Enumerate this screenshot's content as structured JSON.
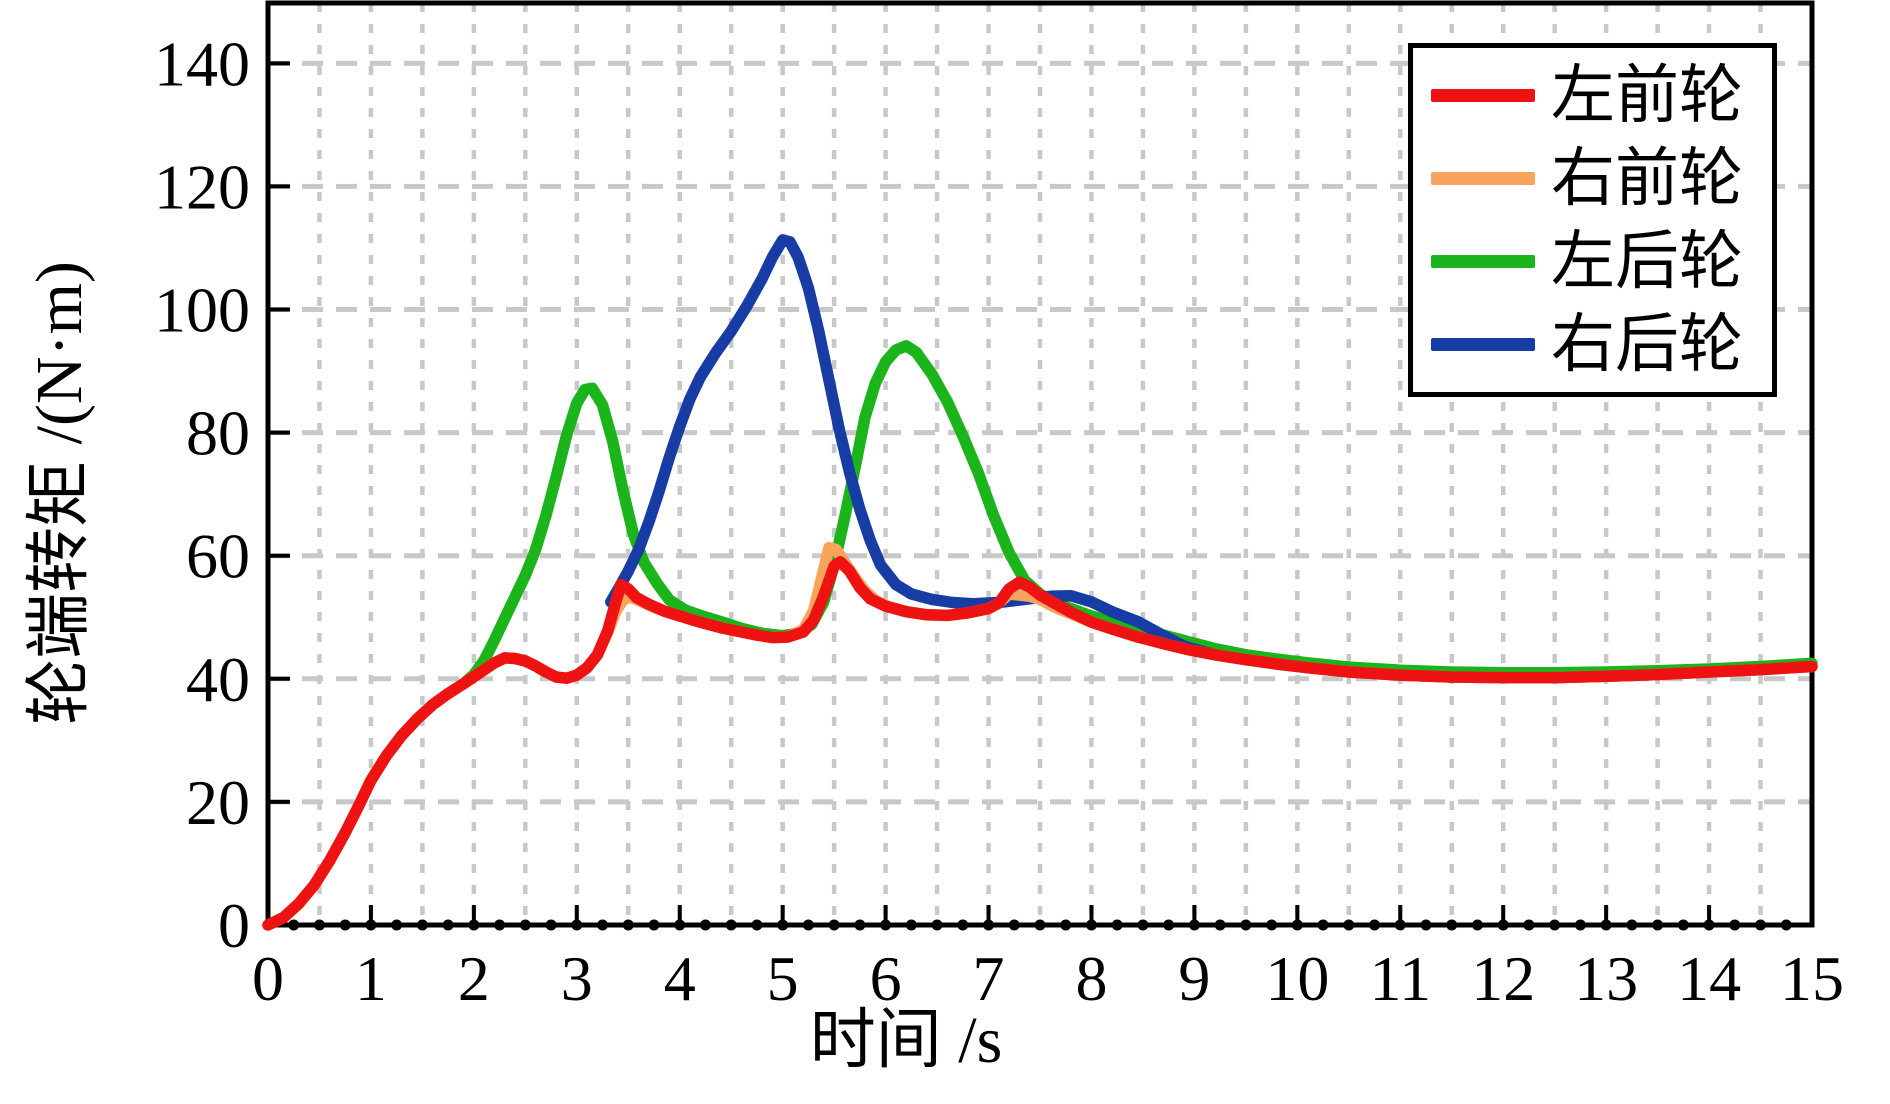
{
  "figure": {
    "background": "#ffffff",
    "border_color": "#000000"
  },
  "chart_data": {
    "type": "line",
    "title": "",
    "xlabel": "时间 /s",
    "ylabel": "轮端转矩 /(N·m)",
    "xlim": [
      0,
      15
    ],
    "ylim": [
      0,
      149.8
    ],
    "xticks": [
      0,
      1,
      2,
      3,
      4,
      5,
      6,
      7,
      8,
      9,
      10,
      11,
      12,
      13,
      14,
      15
    ],
    "yticks": [
      0,
      20,
      40,
      60,
      80,
      100,
      120,
      140
    ],
    "grid": {
      "on": true,
      "color": "#c8c8c8",
      "x_step": 0.5,
      "y_step": 20
    },
    "axis_dot_markers": {
      "step": 0.25,
      "color": "#000000"
    },
    "legend": {
      "position": "top-right",
      "border_color": "#000000",
      "background": "#ffffff"
    },
    "draw_order": [
      2,
      3,
      1,
      0
    ],
    "series": [
      {
        "name": "左前轮",
        "color": "#ee1212",
        "points": [
          [
            0,
            0
          ],
          [
            0.15,
            1.2
          ],
          [
            0.3,
            3.5
          ],
          [
            0.45,
            6.5
          ],
          [
            0.6,
            10.5
          ],
          [
            0.75,
            15
          ],
          [
            0.9,
            20
          ],
          [
            1.0,
            23.5
          ],
          [
            1.15,
            27.5
          ],
          [
            1.3,
            30.8
          ],
          [
            1.45,
            33.5
          ],
          [
            1.6,
            35.8
          ],
          [
            1.75,
            37.6
          ],
          [
            1.9,
            39.2
          ],
          [
            2.05,
            40.9
          ],
          [
            2.2,
            42.6
          ],
          [
            2.3,
            43.4
          ],
          [
            2.4,
            43.3
          ],
          [
            2.5,
            42.9
          ],
          [
            2.6,
            42.1
          ],
          [
            2.7,
            41.1
          ],
          [
            2.8,
            40.3
          ],
          [
            2.9,
            40.1
          ],
          [
            3.0,
            40.6
          ],
          [
            3.1,
            41.8
          ],
          [
            3.2,
            43.9
          ],
          [
            3.3,
            47.8
          ],
          [
            3.37,
            52
          ],
          [
            3.43,
            55.3
          ],
          [
            3.5,
            54.6
          ],
          [
            3.58,
            53.2
          ],
          [
            3.7,
            52.1
          ],
          [
            3.85,
            51
          ],
          [
            4.0,
            50.2
          ],
          [
            4.2,
            49.2
          ],
          [
            4.4,
            48.3
          ],
          [
            4.6,
            47.6
          ],
          [
            4.75,
            47.1
          ],
          [
            4.9,
            46.7
          ],
          [
            5.05,
            46.8
          ],
          [
            5.2,
            47.6
          ],
          [
            5.3,
            49.5
          ],
          [
            5.4,
            53.5
          ],
          [
            5.5,
            58.3
          ],
          [
            5.56,
            59
          ],
          [
            5.65,
            57.5
          ],
          [
            5.75,
            54.8
          ],
          [
            5.85,
            53
          ],
          [
            6.0,
            51.8
          ],
          [
            6.2,
            50.9
          ],
          [
            6.4,
            50.4
          ],
          [
            6.6,
            50.3
          ],
          [
            6.8,
            50.7
          ],
          [
            7.0,
            51.4
          ],
          [
            7.1,
            52.3
          ],
          [
            7.2,
            54.6
          ],
          [
            7.3,
            55.7
          ],
          [
            7.4,
            54.9
          ],
          [
            7.5,
            53.6
          ],
          [
            7.65,
            52.2
          ],
          [
            7.8,
            50.8
          ],
          [
            8.0,
            49.2
          ],
          [
            8.2,
            48.1
          ],
          [
            8.45,
            46.8
          ],
          [
            8.7,
            45.7
          ],
          [
            8.95,
            44.7
          ],
          [
            9.2,
            43.9
          ],
          [
            9.5,
            43.1
          ],
          [
            9.8,
            42.4
          ],
          [
            10.1,
            41.8
          ],
          [
            10.5,
            41.1
          ],
          [
            11.0,
            40.6
          ],
          [
            11.5,
            40.3
          ],
          [
            12.0,
            40.2
          ],
          [
            12.5,
            40.2
          ],
          [
            13.0,
            40.4
          ],
          [
            13.5,
            40.7
          ],
          [
            14.0,
            41.1
          ],
          [
            14.5,
            41.5
          ],
          [
            15.0,
            42.0
          ]
        ]
      },
      {
        "name": "右前轮",
        "color": "#f9a45c",
        "points": [
          [
            0,
            0
          ],
          [
            0.15,
            1.2
          ],
          [
            0.3,
            3.5
          ],
          [
            0.45,
            6.5
          ],
          [
            0.6,
            10.5
          ],
          [
            0.75,
            15
          ],
          [
            0.9,
            20
          ],
          [
            1.0,
            23.5
          ],
          [
            1.15,
            27.5
          ],
          [
            1.3,
            30.8
          ],
          [
            1.45,
            33.5
          ],
          [
            1.6,
            35.8
          ],
          [
            1.75,
            37.6
          ],
          [
            1.9,
            39.2
          ],
          [
            2.05,
            40.9
          ],
          [
            2.2,
            42.6
          ],
          [
            2.3,
            43.4
          ],
          [
            2.4,
            43.3
          ],
          [
            2.5,
            42.9
          ],
          [
            2.6,
            42.1
          ],
          [
            2.7,
            41.1
          ],
          [
            2.8,
            40.3
          ],
          [
            2.9,
            40.1
          ],
          [
            3.0,
            40.6
          ],
          [
            3.1,
            41.8
          ],
          [
            3.2,
            43.9
          ],
          [
            3.3,
            47.5
          ],
          [
            3.38,
            51
          ],
          [
            3.45,
            52.8
          ],
          [
            3.52,
            53.3
          ],
          [
            3.62,
            52.6
          ],
          [
            3.75,
            51.6
          ],
          [
            3.9,
            50.7
          ],
          [
            4.0,
            50.2
          ],
          [
            4.2,
            49.2
          ],
          [
            4.4,
            48.3
          ],
          [
            4.6,
            47.6
          ],
          [
            4.75,
            47.1
          ],
          [
            4.9,
            46.7
          ],
          [
            5.05,
            46.8
          ],
          [
            5.2,
            48
          ],
          [
            5.3,
            51
          ],
          [
            5.38,
            56.5
          ],
          [
            5.45,
            61.3
          ],
          [
            5.52,
            61.0
          ],
          [
            5.6,
            59
          ],
          [
            5.7,
            56.5
          ],
          [
            5.8,
            54.3
          ],
          [
            5.9,
            52.8
          ],
          [
            6.0,
            51.9
          ],
          [
            6.2,
            50.9
          ],
          [
            6.4,
            50.4
          ],
          [
            6.6,
            50.3
          ],
          [
            6.8,
            50.7
          ],
          [
            7.0,
            51.4
          ],
          [
            7.1,
            52.3
          ],
          [
            7.2,
            53.8
          ],
          [
            7.3,
            53.6
          ],
          [
            7.4,
            53.4
          ],
          [
            7.5,
            52.9
          ],
          [
            7.6,
            52.0
          ],
          [
            7.7,
            51.2
          ],
          [
            7.8,
            50.6
          ],
          [
            8.0,
            49.2
          ],
          [
            8.2,
            48.1
          ],
          [
            8.45,
            46.8
          ],
          [
            8.7,
            45.7
          ],
          [
            8.95,
            44.7
          ],
          [
            9.2,
            43.9
          ],
          [
            9.5,
            43.1
          ],
          [
            9.8,
            42.4
          ],
          [
            10.1,
            41.8
          ],
          [
            10.5,
            41.1
          ],
          [
            11.0,
            40.6
          ],
          [
            11.5,
            40.3
          ],
          [
            12.0,
            40.2
          ],
          [
            12.5,
            40.2
          ],
          [
            13.0,
            40.4
          ],
          [
            13.5,
            40.7
          ],
          [
            14.0,
            41.1
          ],
          [
            14.5,
            41.5
          ],
          [
            15.0,
            42.0
          ]
        ]
      },
      {
        "name": "左后轮",
        "color": "#1bb41b",
        "points": [
          [
            1.9,
            39.2
          ],
          [
            2.0,
            40.7
          ],
          [
            2.1,
            43
          ],
          [
            2.2,
            46.3
          ],
          [
            2.3,
            49.8
          ],
          [
            2.4,
            53.3
          ],
          [
            2.5,
            56.8
          ],
          [
            2.6,
            61
          ],
          [
            2.7,
            66.5
          ],
          [
            2.8,
            72.8
          ],
          [
            2.9,
            79.5
          ],
          [
            3.0,
            84.8
          ],
          [
            3.08,
            87.0
          ],
          [
            3.15,
            87.2
          ],
          [
            3.25,
            84.5
          ],
          [
            3.35,
            78.5
          ],
          [
            3.45,
            70.5
          ],
          [
            3.55,
            63.5
          ],
          [
            3.65,
            59
          ],
          [
            3.78,
            55.5
          ],
          [
            3.9,
            52.8
          ],
          [
            4.05,
            51.2
          ],
          [
            4.2,
            50.3
          ],
          [
            4.4,
            49.3
          ],
          [
            4.6,
            48.2
          ],
          [
            4.8,
            47.4
          ],
          [
            5.0,
            47.0
          ],
          [
            5.15,
            47.4
          ],
          [
            5.28,
            48.8
          ],
          [
            5.4,
            52.5
          ],
          [
            5.5,
            58.5
          ],
          [
            5.6,
            66
          ],
          [
            5.7,
            74
          ],
          [
            5.8,
            82.5
          ],
          [
            5.9,
            88
          ],
          [
            6.0,
            91.5
          ],
          [
            6.1,
            93.4
          ],
          [
            6.2,
            94.1
          ],
          [
            6.3,
            93.0
          ],
          [
            6.45,
            89.5
          ],
          [
            6.6,
            85
          ],
          [
            6.75,
            79.5
          ],
          [
            6.9,
            73.5
          ],
          [
            7.05,
            66.5
          ],
          [
            7.2,
            60.5
          ],
          [
            7.35,
            56
          ],
          [
            7.5,
            53.8
          ],
          [
            7.65,
            52.3
          ],
          [
            7.8,
            51.4
          ],
          [
            8.0,
            50.2
          ],
          [
            8.2,
            49.3
          ],
          [
            8.45,
            48.2
          ],
          [
            8.7,
            47.1
          ],
          [
            8.95,
            46.0
          ],
          [
            9.2,
            44.9
          ],
          [
            9.5,
            43.9
          ],
          [
            9.8,
            43.2
          ],
          [
            10.1,
            42.6
          ],
          [
            10.5,
            41.9
          ],
          [
            11.0,
            41.4
          ],
          [
            11.5,
            41.1
          ],
          [
            12.0,
            41.0
          ],
          [
            12.5,
            41.0
          ],
          [
            13.0,
            41.1
          ],
          [
            13.5,
            41.3
          ],
          [
            14.0,
            41.6
          ],
          [
            14.5,
            42.0
          ],
          [
            15.0,
            42.5
          ]
        ]
      },
      {
        "name": "右后轮",
        "color": "#173da4",
        "points": [
          [
            3.33,
            52.5
          ],
          [
            3.4,
            54.5
          ],
          [
            3.5,
            57.5
          ],
          [
            3.6,
            61
          ],
          [
            3.7,
            65.5
          ],
          [
            3.8,
            70.5
          ],
          [
            3.9,
            76
          ],
          [
            4.0,
            81
          ],
          [
            4.1,
            85.5
          ],
          [
            4.2,
            89
          ],
          [
            4.35,
            93
          ],
          [
            4.5,
            96.5
          ],
          [
            4.65,
            100.5
          ],
          [
            4.8,
            105
          ],
          [
            4.9,
            108.5
          ],
          [
            5.0,
            111.3
          ],
          [
            5.07,
            111.0
          ],
          [
            5.15,
            108.5
          ],
          [
            5.25,
            103.5
          ],
          [
            5.35,
            96.5
          ],
          [
            5.45,
            88.5
          ],
          [
            5.55,
            80.5
          ],
          [
            5.65,
            73.5
          ],
          [
            5.75,
            67.5
          ],
          [
            5.85,
            62.5
          ],
          [
            5.95,
            58.5
          ],
          [
            6.1,
            55.3
          ],
          [
            6.25,
            53.8
          ],
          [
            6.45,
            52.9
          ],
          [
            6.65,
            52.4
          ],
          [
            6.85,
            52.2
          ],
          [
            7.1,
            52.4
          ],
          [
            7.35,
            52.9
          ],
          [
            7.6,
            53.4
          ],
          [
            7.8,
            53.5
          ],
          [
            8.0,
            52.5
          ],
          [
            8.2,
            50.9
          ],
          [
            8.45,
            49.3
          ],
          [
            8.68,
            47.2
          ],
          [
            8.9,
            45.3
          ],
          [
            9.05,
            44.6
          ],
          [
            9.2,
            43.9
          ],
          [
            9.5,
            43.1
          ],
          [
            9.8,
            42.4
          ],
          [
            10.1,
            41.8
          ],
          [
            10.5,
            41.1
          ],
          [
            11.0,
            40.6
          ],
          [
            11.5,
            40.3
          ],
          [
            12.0,
            40.2
          ],
          [
            12.5,
            40.2
          ],
          [
            13.0,
            40.4
          ],
          [
            13.5,
            40.7
          ],
          [
            14.0,
            41.1
          ],
          [
            14.5,
            41.5
          ],
          [
            15.0,
            42.0
          ]
        ]
      }
    ]
  },
  "legend": {
    "items": [
      {
        "label": "左前轮"
      },
      {
        "label": "右前轮"
      },
      {
        "label": "左后轮"
      },
      {
        "label": "右后轮"
      }
    ]
  }
}
